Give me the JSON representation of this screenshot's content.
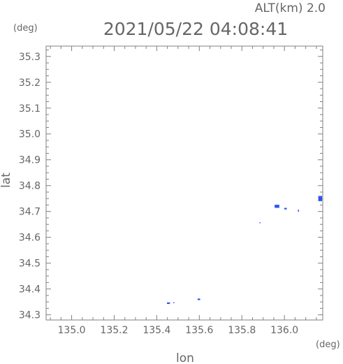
{
  "chart_data": {
    "type": "scatter",
    "title": "2021/05/22 04:08:41",
    "subtitle": "ALT(km) 2.0",
    "xlabel": "lon",
    "ylabel": "lat",
    "x_unit": "(deg)",
    "y_unit": "(deg)",
    "xlim": [
      134.88,
      136.18
    ],
    "ylim": [
      34.28,
      35.34
    ],
    "xticks": [
      135.0,
      135.2,
      135.4,
      135.6,
      135.8,
      136.0
    ],
    "yticks": [
      34.3,
      34.4,
      34.5,
      34.6,
      34.7,
      34.8,
      34.9,
      35.0,
      35.1,
      35.2,
      35.3
    ],
    "x_tick_labels": [
      "135.0",
      "135.2",
      "135.4",
      "135.6",
      "135.8",
      "136.0"
    ],
    "y_tick_labels": [
      "34.3",
      "34.4",
      "34.5",
      "34.6",
      "34.7",
      "34.8",
      "34.9",
      "35.0",
      "35.1",
      "35.2",
      "35.3"
    ],
    "grid": false,
    "colors": {
      "points": "#2f55ee",
      "axes": "#808080",
      "text": "#666666"
    },
    "series": [
      {
        "points": [
          {
            "x": 135.455,
            "y": 34.345,
            "w": 0.014,
            "h": 0.006
          },
          {
            "x": 135.48,
            "y": 34.347,
            "w": 0.004,
            "h": 0.004
          },
          {
            "x": 135.598,
            "y": 34.36,
            "w": 0.012,
            "h": 0.006
          },
          {
            "x": 135.885,
            "y": 34.657,
            "w": 0.004,
            "h": 0.003
          },
          {
            "x": 135.965,
            "y": 34.72,
            "w": 0.022,
            "h": 0.012
          },
          {
            "x": 136.005,
            "y": 34.711,
            "w": 0.012,
            "h": 0.006
          },
          {
            "x": 136.065,
            "y": 34.703,
            "w": 0.003,
            "h": 0.008
          },
          {
            "x": 136.168,
            "y": 34.75,
            "w": 0.018,
            "h": 0.02
          }
        ]
      }
    ]
  }
}
